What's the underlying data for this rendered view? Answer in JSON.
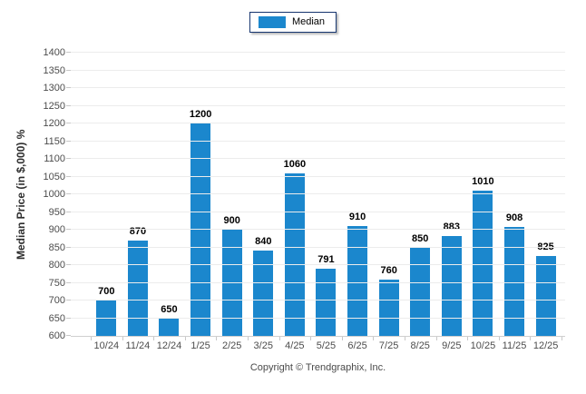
{
  "legend": {
    "label": "Median",
    "swatch_color": "#1b87cd"
  },
  "footer": {
    "copyright": "Copyright © Trendgraphix, Inc."
  },
  "colors": {
    "bar": "#1b87cd",
    "gridline": "#ececec",
    "axis_line": "#cfcfcf",
    "tick_text": "#4c4c4c",
    "value_label": "#000000",
    "legend_border": "#16356f"
  },
  "chart_data": {
    "type": "bar",
    "title": "",
    "xlabel": "",
    "ylabel": "Median Price (in $,000) %",
    "categories": [
      "10/24",
      "11/24",
      "12/24",
      "1/25",
      "2/25",
      "3/25",
      "4/25",
      "5/25",
      "6/25",
      "7/25",
      "8/25",
      "9/25",
      "10/25",
      "11/25",
      "12/25"
    ],
    "values": [
      700,
      870,
      650,
      1200,
      900,
      840,
      1060,
      791,
      910,
      760,
      850,
      883,
      1010,
      908,
      825
    ],
    "value_labels_shown": true,
    "ylim": [
      600,
      1400
    ],
    "ytick_step": 50,
    "grid": true,
    "legend_position": "top-center",
    "legend_entries": [
      "Median"
    ],
    "bar_color": "#1b87cd"
  }
}
